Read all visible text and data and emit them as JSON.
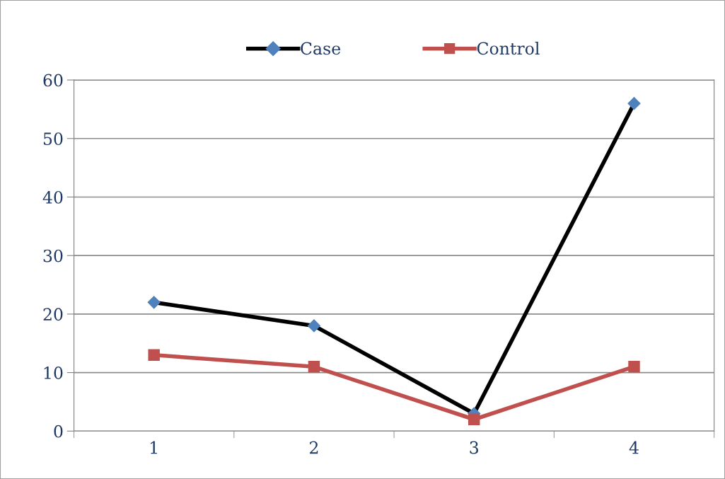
{
  "chart_data": {
    "type": "line",
    "categories": [
      "1",
      "2",
      "3",
      "4"
    ],
    "series": [
      {
        "name": "Case",
        "color": "#000000",
        "colors": [
          "#4f81bd",
          "#4f81bd",
          "#4f81bd",
          "#4f81bd"
        ],
        "marker": "diamond",
        "values": [
          22,
          18,
          3,
          56
        ]
      },
      {
        "name": "Control",
        "color": "#c0504d",
        "marker": "square",
        "values": [
          13,
          11,
          2,
          11
        ]
      }
    ],
    "ylim": [
      0,
      60
    ],
    "yticks": [
      0,
      10,
      20,
      30,
      40,
      50,
      60
    ],
    "grid": "y",
    "legend": "top",
    "line_style": "solid"
  }
}
